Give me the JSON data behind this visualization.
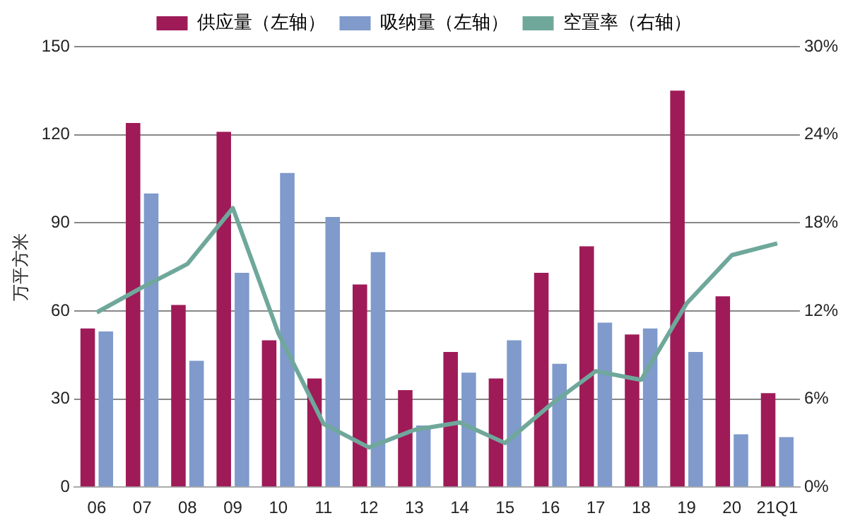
{
  "chart_data": {
    "type": "bar",
    "ylabel": "万平方米",
    "categories": [
      "06",
      "07",
      "08",
      "09",
      "10",
      "11",
      "12",
      "13",
      "14",
      "15",
      "16",
      "17",
      "18",
      "19",
      "20",
      "21Q1"
    ],
    "series": [
      {
        "name": "供应量（左轴）",
        "color": "#9e1b58",
        "values": [
          54,
          124,
          62,
          121,
          50,
          37,
          69,
          33,
          46,
          37,
          73,
          82,
          52,
          135,
          65,
          32
        ]
      },
      {
        "name": "吸纳量（左轴）",
        "color": "#7f9acb",
        "values": [
          53,
          100,
          43,
          73,
          107,
          92,
          80,
          21,
          39,
          50,
          42,
          56,
          54,
          46,
          18,
          17
        ]
      },
      {
        "name": "空置率（右轴）",
        "type": "line",
        "axis": "y2",
        "color": "#6fa89b",
        "values": [
          11.9,
          13.6,
          15.2,
          19,
          10.5,
          4.3,
          2.7,
          3.9,
          4.4,
          3.0,
          5.6,
          7.9,
          7.3,
          12.5,
          15.8,
          16.6
        ]
      }
    ],
    "ylim": [
      0,
      150
    ],
    "yticks": [
      0,
      30,
      60,
      90,
      120,
      150
    ],
    "y2lim": [
      0,
      30
    ],
    "y2ticks": [
      {
        "value": 0,
        "label": "0%"
      },
      {
        "value": 6,
        "label": "6%"
      },
      {
        "value": 12,
        "label": "12%"
      },
      {
        "value": 18,
        "label": "18%"
      },
      {
        "value": 24,
        "label": "24%"
      },
      {
        "value": 30,
        "label": "30%"
      }
    ],
    "grid": "y",
    "legend": "top",
    "marker": "none"
  }
}
